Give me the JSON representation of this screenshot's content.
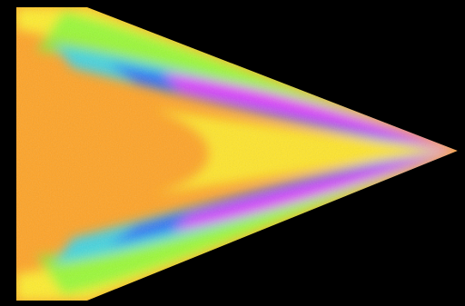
{
  "image": {
    "background_color": "#000000",
    "palette": {
      "orange": "#ffa324",
      "yellow": "#fff12a",
      "green": "#6dff3a",
      "cyan": "#27d8ff",
      "blue": "#2a4bff",
      "magenta": "#ff31ff"
    }
  }
}
